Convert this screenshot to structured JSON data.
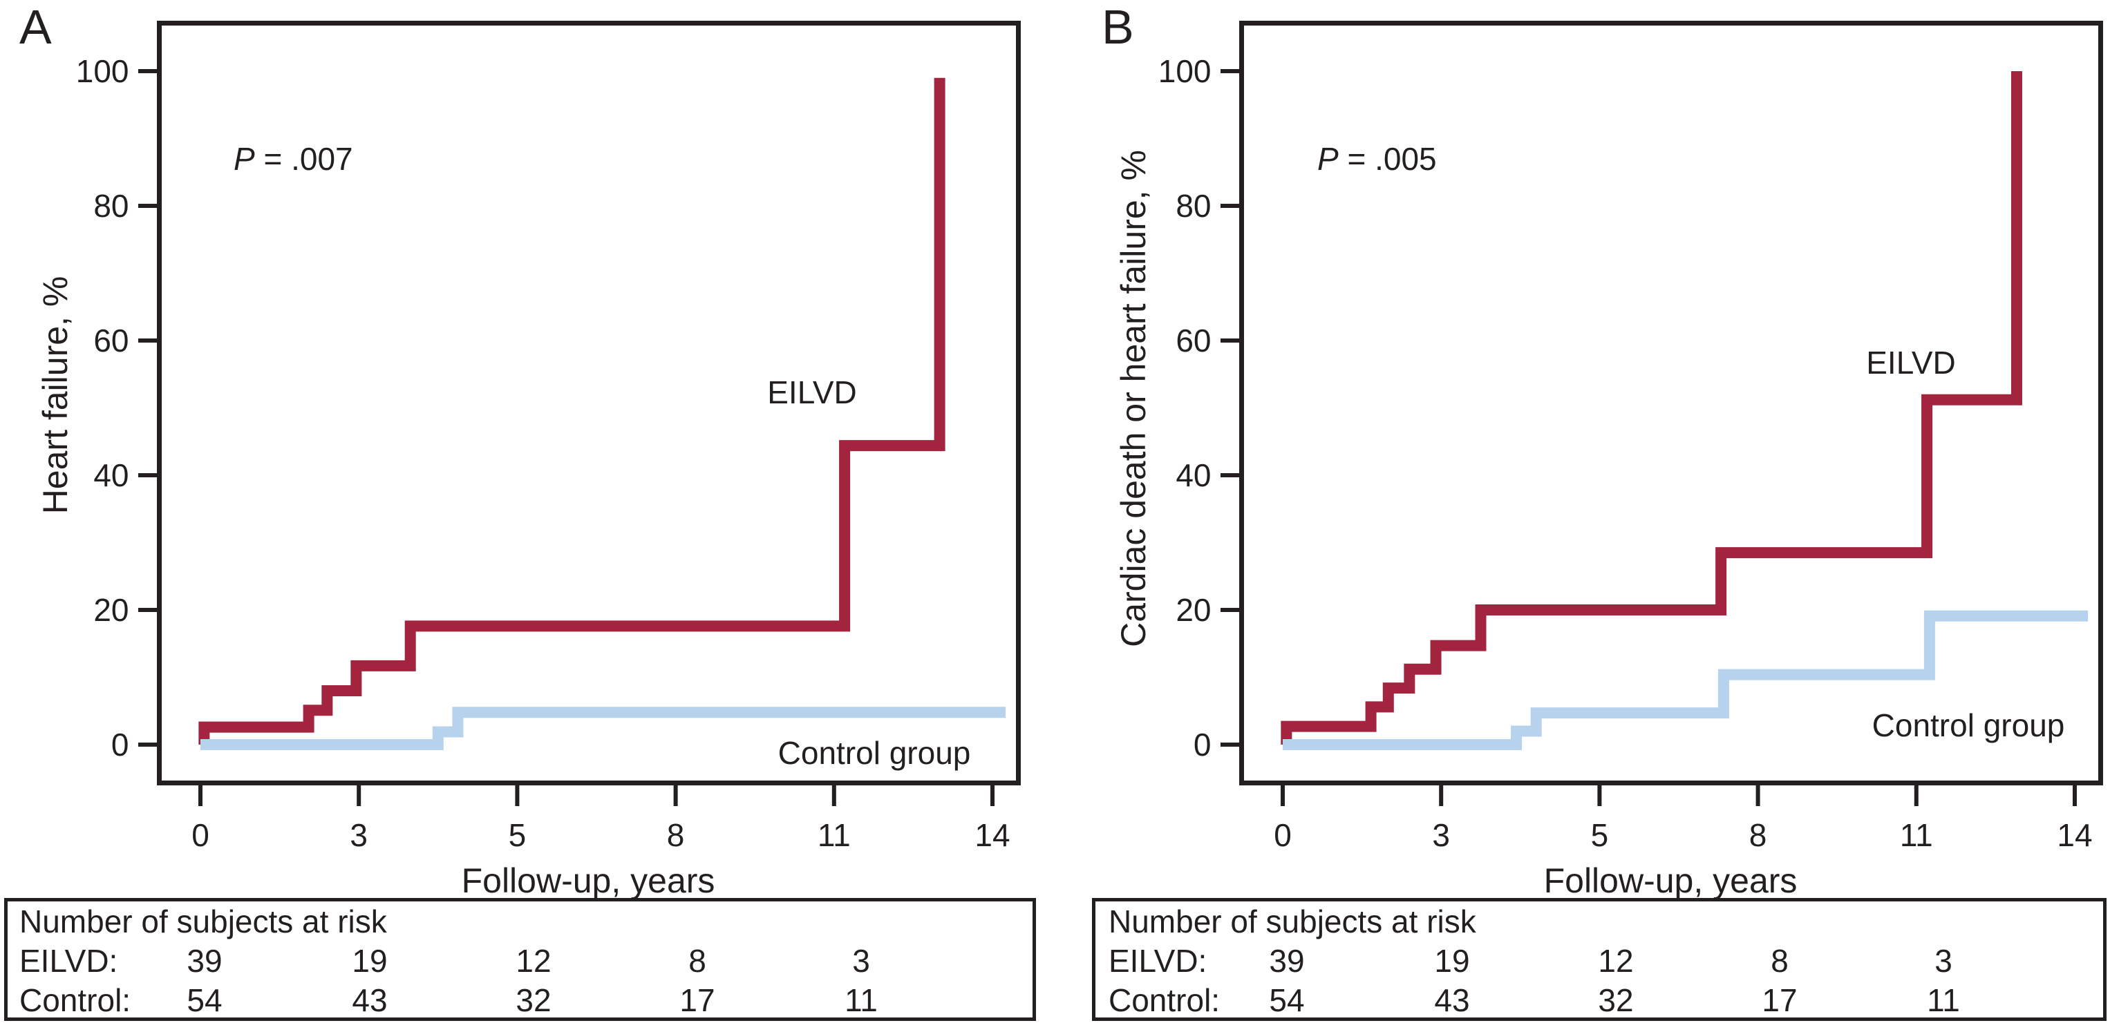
{
  "figure": {
    "panels": [
      {
        "label": "A",
        "p_label": {
          "symbol": "P",
          "rest": " = .007"
        },
        "y_axis_label": "Heart failure, %",
        "x_axis_label": "Follow-up, years",
        "x_tick_labels": [
          "0",
          "3",
          "5",
          "8",
          "11",
          "14"
        ],
        "y_tick_labels": [
          "0",
          "20",
          "40",
          "60",
          "80",
          "100"
        ],
        "series_labels": {
          "eilvd": "EILVD",
          "control": "Control group"
        },
        "risk_table": {
          "title": "Number of subjects at risk",
          "rows": [
            {
              "label": "EILVD:",
              "values": [
                "39",
                "19",
                "12",
                "8",
                "3"
              ]
            },
            {
              "label": "Control:",
              "values": [
                "54",
                "43",
                "32",
                "17",
                "11"
              ]
            }
          ]
        }
      },
      {
        "label": "B",
        "p_label": {
          "symbol": "P",
          "rest": " = .005"
        },
        "y_axis_label": "Cardiac death or heart failure, %",
        "x_axis_label": "Follow-up, years",
        "x_tick_labels": [
          "0",
          "3",
          "5",
          "8",
          "11",
          "14"
        ],
        "y_tick_labels": [
          "0",
          "20",
          "40",
          "60",
          "80",
          "100"
        ],
        "series_labels": {
          "eilvd": "EILVD",
          "control": "Control group"
        },
        "risk_table": {
          "title": "Number of subjects at risk",
          "rows": [
            {
              "label": "EILVD:",
              "values": [
                "39",
                "19",
                "12",
                "8",
                "3"
              ]
            },
            {
              "label": "Control:",
              "values": [
                "54",
                "43",
                "32",
                "17",
                "11"
              ]
            }
          ]
        }
      }
    ]
  },
  "colors": {
    "eilvd": "#A2243E",
    "control": "#B7D2EC",
    "axis": "#231F20",
    "background": "#FFFFFF"
  },
  "chart_data": [
    {
      "type": "line",
      "subtype": "kaplan-meier-cumulative-incidence-steps",
      "title": "A",
      "annotation": "P = .007",
      "xlabel": "Follow-up, years",
      "ylabel": "Heart failure, %",
      "x_tick_labels": [
        0,
        3,
        5,
        8,
        11,
        14
      ],
      "x_axis_note": "tick labels evenly spaced on axis despite uneven year values",
      "ylim": [
        0,
        100
      ],
      "y_ticks": [
        0,
        20,
        40,
        60,
        80,
        100
      ],
      "grid": false,
      "legend_position": "inline-labels",
      "series": [
        {
          "name": "EILVD",
          "color": "#A2243E",
          "step_points": [
            [
              0,
              0
            ],
            [
              0.07,
              2.6
            ],
            [
              2.05,
              5.1
            ],
            [
              2.4,
              8.0
            ],
            [
              2.95,
              11.7
            ],
            [
              3.65,
              17.6
            ],
            [
              11.2,
              44.4
            ],
            [
              13.0,
              99
            ]
          ],
          "end_x": null
        },
        {
          "name": "Control group",
          "color": "#B7D2EC",
          "step_points": [
            [
              0,
              0
            ],
            [
              4.0,
              1.9
            ],
            [
              4.25,
              4.8
            ]
          ],
          "end_x": 14.25
        }
      ],
      "at_risk": {
        "title": "Number of subjects at risk",
        "rows": [
          {
            "label": "EILVD:",
            "counts": [
              39,
              19,
              12,
              8,
              3
            ]
          },
          {
            "label": "Control:",
            "counts": [
              54,
              43,
              32,
              17,
              11
            ]
          }
        ]
      }
    },
    {
      "type": "line",
      "subtype": "kaplan-meier-cumulative-incidence-steps",
      "title": "B",
      "annotation": "P = .005",
      "xlabel": "Follow-up, years",
      "ylabel": "Cardiac death or heart failure, %",
      "x_tick_labels": [
        0,
        3,
        5,
        8,
        11,
        14
      ],
      "x_axis_note": "tick labels evenly spaced on axis despite uneven year values",
      "ylim": [
        0,
        100
      ],
      "y_ticks": [
        0,
        20,
        40,
        60,
        80,
        100
      ],
      "grid": false,
      "legend_position": "inline-labels",
      "series": [
        {
          "name": "EILVD",
          "color": "#A2243E",
          "step_points": [
            [
              0,
              0
            ],
            [
              0.07,
              2.7
            ],
            [
              1.67,
              5.6
            ],
            [
              2.0,
              8.4
            ],
            [
              2.4,
              11.2
            ],
            [
              2.9,
              14.7
            ],
            [
              3.5,
              20.0
            ],
            [
              7.3,
              28.5
            ],
            [
              11.2,
              51.2
            ],
            [
              12.9,
              100
            ]
          ],
          "end_x": null
        },
        {
          "name": "Control group",
          "color": "#B7D2EC",
          "step_points": [
            [
              0,
              0
            ],
            [
              3.95,
              2.0
            ],
            [
              4.2,
              4.7
            ],
            [
              7.35,
              10.4
            ],
            [
              11.25,
              19.1
            ]
          ],
          "end_x": 14.25
        }
      ],
      "at_risk": {
        "title": "Number of subjects at risk",
        "rows": [
          {
            "label": "EILVD:",
            "counts": [
              39,
              19,
              12,
              8,
              3
            ]
          },
          {
            "label": "Control:",
            "counts": [
              54,
              43,
              32,
              17,
              11
            ]
          }
        ]
      }
    }
  ]
}
